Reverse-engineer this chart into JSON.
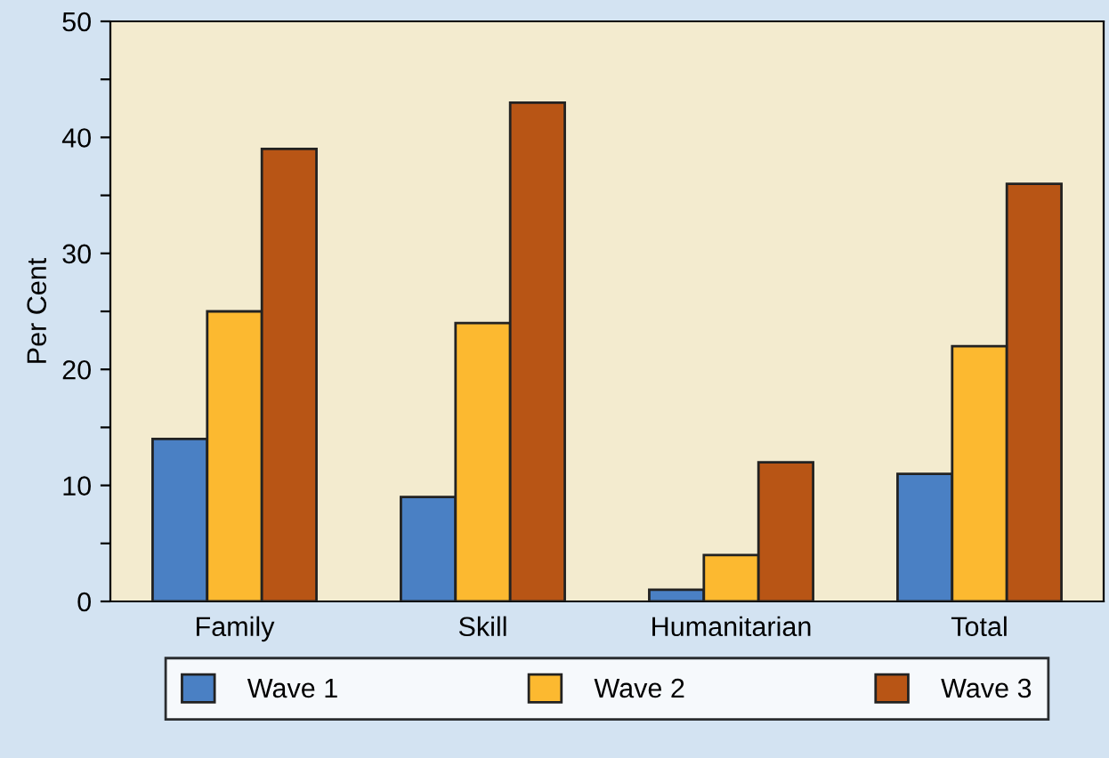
{
  "chart_data": {
    "type": "bar",
    "ylabel": "Per Cent",
    "categories": [
      "Family",
      "Skill",
      "Humanitarian",
      "Total"
    ],
    "series": [
      {
        "name": "Wave 1",
        "color": "#4a80c4",
        "values": [
          14,
          9,
          1,
          11
        ]
      },
      {
        "name": "Wave 2",
        "color": "#fcb930",
        "values": [
          25,
          24,
          4,
          22
        ]
      },
      {
        "name": "Wave 3",
        "color": "#b85515",
        "values": [
          39,
          43,
          12,
          36
        ]
      }
    ],
    "ylim": [
      0,
      50
    ],
    "yticks": [
      0,
      {
        "value": 5,
        "label": null
      },
      10,
      {
        "value": 15,
        "label": null
      },
      20,
      {
        "value": 25,
        "label": null
      },
      30,
      {
        "value": 35,
        "label": null
      },
      40,
      {
        "value": 45,
        "label": null
      },
      50
    ],
    "grid": false,
    "legend": "bottom"
  }
}
